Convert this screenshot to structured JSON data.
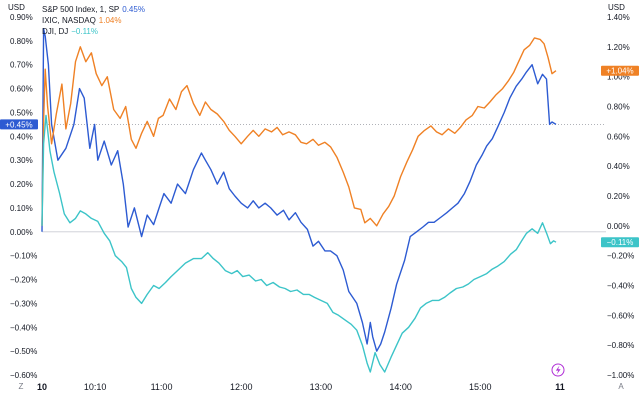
{
  "legend": [
    {
      "label": "S&P 500 Index, 1, SP",
      "value": "0.45%",
      "color": "#2d5bd2"
    },
    {
      "label": "IXIC, NASDAQ",
      "value": "1.04%",
      "color": "#ef8125"
    },
    {
      "label": "DJI, DJ",
      "value": "−0.11%",
      "color": "#3cc4c8"
    }
  ],
  "corner_left": "Z",
  "corner_right": "A",
  "chart_data": {
    "type": "line",
    "left_axis": {
      "unit": "USD",
      "range": [
        -0.6,
        0.9
      ],
      "ticks": [
        "0.90%",
        "0.80%",
        "0.70%",
        "0.60%",
        "0.50%",
        "0.40%",
        "0.30%",
        "0.20%",
        "0.10%",
        "0.00%",
        "−0.10%",
        "−0.20%",
        "−0.30%",
        "−0.40%",
        "−0.50%",
        "−0.60%"
      ]
    },
    "right_axis": {
      "unit": "USD",
      "range": [
        -1.0,
        1.4
      ],
      "ticks": [
        "1.40%",
        "1.20%",
        "1.00%",
        "0.80%",
        "0.60%",
        "0.40%",
        "0.20%",
        "0.00%",
        "−0.20%",
        "−0.40%",
        "−0.60%",
        "−0.80%",
        "−1.00%"
      ]
    },
    "x_axis": {
      "range": [
        9.5,
        16.0
      ],
      "ticks": [
        {
          "t": 9.5,
          "label": "10",
          "bold": true
        },
        {
          "t": 10.1667,
          "label": "10:10",
          "bold": false
        },
        {
          "t": 11.0,
          "label": "11:00",
          "bold": false
        },
        {
          "t": 12.0,
          "label": "12:00",
          "bold": false
        },
        {
          "t": 13.0,
          "label": "13:00",
          "bold": false
        },
        {
          "t": 14.0,
          "label": "14:00",
          "bold": false
        },
        {
          "t": 15.0,
          "label": "15:00",
          "bold": false
        },
        {
          "t": 16.0,
          "label": "11",
          "bold": true
        }
      ]
    },
    "grid": false,
    "series": [
      {
        "name": "S&P 500 Index, 1, SP",
        "axis": "left",
        "color": "#2d5bd2",
        "last_label": "+0.45%",
        "t": [
          9.5,
          9.52,
          9.54,
          9.58,
          9.62,
          9.7,
          9.8,
          9.9,
          9.97,
          10.03,
          10.1,
          10.16,
          10.2,
          10.28,
          10.37,
          10.45,
          10.52,
          10.58,
          10.66,
          10.75,
          10.82,
          10.9,
          10.97,
          11.03,
          11.12,
          11.2,
          11.3,
          11.4,
          11.5,
          11.55,
          11.62,
          11.7,
          11.78,
          11.85,
          11.92,
          12.0,
          12.08,
          12.15,
          12.22,
          12.3,
          12.37,
          12.45,
          12.53,
          12.6,
          12.68,
          12.75,
          12.83,
          12.9,
          12.97,
          13.05,
          13.12,
          13.2,
          13.28,
          13.35,
          13.45,
          13.52,
          13.58,
          13.62,
          13.65,
          13.7,
          13.75,
          13.8,
          13.88,
          13.95,
          14.05,
          14.12,
          14.2,
          14.28,
          14.35,
          14.42,
          14.5,
          14.58,
          14.65,
          14.72,
          14.8,
          14.87,
          14.95,
          15.02,
          15.08,
          15.15,
          15.22,
          15.3,
          15.37,
          15.45,
          15.52,
          15.58,
          15.65,
          15.72,
          15.78,
          15.83,
          15.87,
          15.9,
          15.95
        ],
        "values": [
          0.0,
          0.85,
          0.82,
          0.7,
          0.45,
          0.3,
          0.35,
          0.45,
          0.6,
          0.56,
          0.35,
          0.45,
          0.3,
          0.38,
          0.28,
          0.34,
          0.2,
          0.02,
          0.1,
          -0.02,
          0.07,
          0.03,
          0.1,
          0.16,
          0.12,
          0.2,
          0.16,
          0.26,
          0.33,
          0.3,
          0.26,
          0.2,
          0.25,
          0.18,
          0.15,
          0.12,
          0.1,
          0.13,
          0.1,
          0.12,
          0.1,
          0.07,
          0.09,
          0.05,
          0.08,
          0.04,
          0.01,
          -0.06,
          -0.04,
          -0.08,
          -0.08,
          -0.1,
          -0.16,
          -0.25,
          -0.3,
          -0.38,
          -0.47,
          -0.38,
          -0.44,
          -0.5,
          -0.47,
          -0.42,
          -0.32,
          -0.22,
          -0.12,
          -0.02,
          0.0,
          0.02,
          0.04,
          0.04,
          0.06,
          0.08,
          0.1,
          0.12,
          0.16,
          0.21,
          0.28,
          0.32,
          0.36,
          0.39,
          0.44,
          0.5,
          0.56,
          0.61,
          0.64,
          0.67,
          0.7,
          0.62,
          0.66,
          0.64,
          0.45,
          0.46,
          0.45
        ]
      },
      {
        "name": "IXIC, NASDAQ",
        "axis": "right",
        "color": "#ef8125",
        "last_label": "+1.04%",
        "t": [
          9.5,
          9.52,
          9.54,
          9.57,
          9.62,
          9.68,
          9.75,
          9.8,
          9.86,
          9.92,
          9.98,
          10.05,
          10.12,
          10.18,
          10.25,
          10.32,
          10.4,
          10.48,
          10.55,
          10.62,
          10.68,
          10.75,
          10.82,
          10.9,
          10.96,
          11.02,
          11.1,
          11.18,
          11.25,
          11.32,
          11.4,
          11.48,
          11.55,
          11.62,
          11.7,
          11.78,
          11.85,
          11.92,
          12.0,
          12.08,
          12.15,
          12.22,
          12.3,
          12.38,
          12.45,
          12.52,
          12.6,
          12.68,
          12.75,
          12.82,
          12.9,
          12.97,
          13.05,
          13.12,
          13.2,
          13.28,
          13.35,
          13.42,
          13.5,
          13.55,
          13.62,
          13.7,
          13.78,
          13.85,
          13.92,
          14.0,
          14.08,
          14.15,
          14.22,
          14.3,
          14.38,
          14.45,
          14.52,
          14.6,
          14.68,
          14.75,
          14.82,
          14.9,
          14.97,
          15.05,
          15.12,
          15.2,
          15.28,
          15.35,
          15.42,
          15.48,
          15.55,
          15.62,
          15.68,
          15.75,
          15.8,
          15.85,
          15.9,
          15.95
        ],
        "values": [
          0.0,
          0.7,
          1.05,
          0.8,
          0.55,
          0.75,
          0.95,
          0.65,
          0.82,
          1.1,
          1.2,
          1.1,
          1.16,
          1.02,
          0.94,
          1.0,
          0.78,
          0.72,
          0.8,
          0.58,
          0.52,
          0.62,
          0.7,
          0.6,
          0.72,
          0.74,
          0.85,
          0.78,
          0.9,
          0.94,
          0.82,
          0.74,
          0.83,
          0.78,
          0.75,
          0.7,
          0.64,
          0.6,
          0.55,
          0.6,
          0.64,
          0.6,
          0.65,
          0.63,
          0.66,
          0.61,
          0.63,
          0.61,
          0.56,
          0.55,
          0.58,
          0.54,
          0.56,
          0.53,
          0.46,
          0.36,
          0.26,
          0.12,
          0.11,
          0.02,
          0.05,
          0.0,
          0.08,
          0.13,
          0.2,
          0.33,
          0.43,
          0.51,
          0.6,
          0.64,
          0.67,
          0.63,
          0.61,
          0.65,
          0.62,
          0.66,
          0.71,
          0.74,
          0.8,
          0.79,
          0.83,
          0.88,
          0.92,
          0.97,
          1.03,
          1.1,
          1.18,
          1.21,
          1.26,
          1.25,
          1.22,
          1.13,
          1.02,
          1.04
        ]
      },
      {
        "name": "DJI, DJ",
        "axis": "right",
        "color": "#3cc4c8",
        "last_label": "−0.11%",
        "t": [
          9.5,
          9.52,
          9.55,
          9.6,
          9.65,
          9.72,
          9.78,
          9.85,
          9.92,
          9.98,
          10.05,
          10.12,
          10.2,
          10.28,
          10.35,
          10.42,
          10.5,
          10.56,
          10.62,
          10.68,
          10.75,
          10.82,
          10.9,
          10.97,
          11.05,
          11.12,
          11.2,
          11.3,
          11.4,
          11.5,
          11.58,
          11.65,
          11.72,
          11.8,
          11.88,
          11.95,
          12.02,
          12.1,
          12.18,
          12.25,
          12.32,
          12.4,
          12.48,
          12.55,
          12.62,
          12.7,
          12.78,
          12.85,
          12.92,
          13.0,
          13.08,
          13.15,
          13.22,
          13.3,
          13.38,
          13.45,
          13.52,
          13.58,
          13.62,
          13.68,
          13.74,
          13.8,
          13.88,
          13.95,
          14.02,
          14.1,
          14.18,
          14.25,
          14.32,
          14.4,
          14.48,
          14.55,
          14.62,
          14.7,
          14.78,
          14.85,
          14.92,
          15.0,
          15.08,
          15.15,
          15.22,
          15.3,
          15.38,
          15.45,
          15.52,
          15.58,
          15.65,
          15.72,
          15.78,
          15.84,
          15.88,
          15.92,
          15.95
        ],
        "values": [
          0.0,
          0.55,
          0.74,
          0.5,
          0.36,
          0.22,
          0.08,
          0.02,
          0.05,
          0.1,
          0.08,
          0.05,
          0.03,
          -0.05,
          -0.1,
          -0.2,
          -0.24,
          -0.28,
          -0.42,
          -0.48,
          -0.52,
          -0.46,
          -0.4,
          -0.42,
          -0.38,
          -0.34,
          -0.3,
          -0.25,
          -0.22,
          -0.22,
          -0.18,
          -0.22,
          -0.25,
          -0.3,
          -0.32,
          -0.3,
          -0.34,
          -0.33,
          -0.37,
          -0.36,
          -0.4,
          -0.38,
          -0.41,
          -0.42,
          -0.44,
          -0.43,
          -0.46,
          -0.46,
          -0.48,
          -0.5,
          -0.52,
          -0.58,
          -0.6,
          -0.63,
          -0.66,
          -0.7,
          -0.8,
          -0.92,
          -0.98,
          -0.85,
          -0.93,
          -0.98,
          -0.88,
          -0.8,
          -0.72,
          -0.68,
          -0.62,
          -0.55,
          -0.52,
          -0.5,
          -0.5,
          -0.48,
          -0.45,
          -0.42,
          -0.41,
          -0.39,
          -0.36,
          -0.34,
          -0.32,
          -0.29,
          -0.27,
          -0.24,
          -0.19,
          -0.16,
          -0.1,
          -0.05,
          -0.02,
          -0.05,
          0.02,
          -0.06,
          -0.12,
          -0.1,
          -0.11
        ]
      }
    ]
  }
}
